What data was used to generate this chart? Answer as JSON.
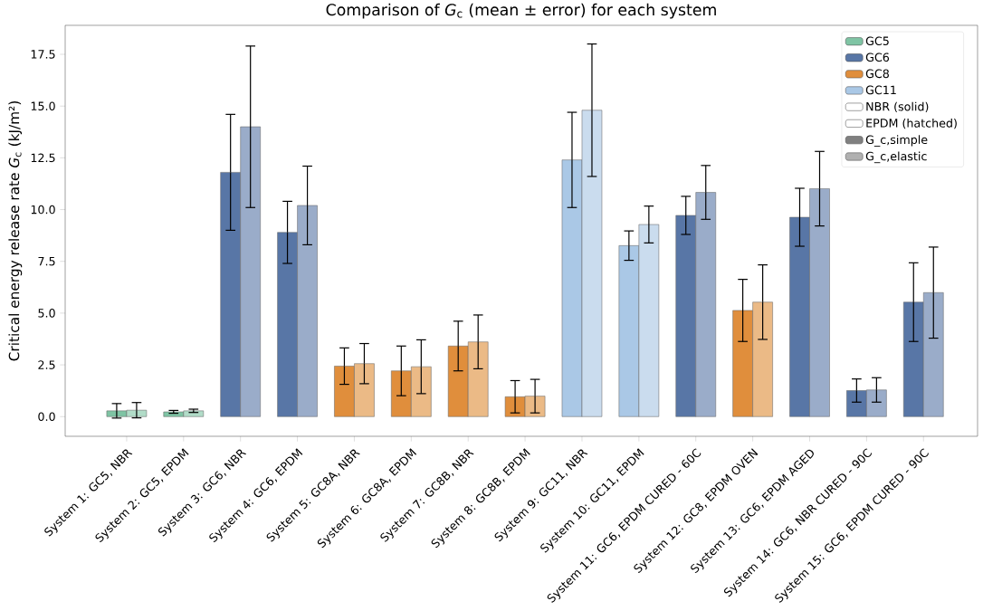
{
  "chart_data": {
    "type": "bar",
    "title": "Comparison of *G*$_{c}$ (mean ± error) for each system",
    "ylabel": "Critical energy release rate *G*$_{c}$ (kJ/m²)",
    "categories": [
      "System 1: GC5, NBR",
      "System 2: GC5, EPDM",
      "System 3: GC6, NBR",
      "System 4: GC6, EPDM",
      "System 5: GC8A, NBR",
      "System 6: GC8A, EPDM",
      "System 7: GC8B, NBR",
      "System 8: GC8B, EPDM",
      "System 9: GC11, NBR",
      "System 10: GC11, EPDM",
      "System 11: GC6, EPDM CURED - 60C",
      "System 12: GC8, EPDM OVEN",
      "System 13: GC6, EPDM AGED",
      "System 14: GC6, NBR CURED - 90C",
      "System 15: GC6, EPDM CURED - 90C"
    ],
    "series": [
      {
        "name": "GC5",
        "color": "#7fc4a4",
        "values": [
          null,
          null,
          null,
          null,
          null,
          null,
          null,
          null,
          null,
          null,
          null,
          null,
          null,
          null,
          null
        ]
      },
      {
        "name": "GC6",
        "color": "#5876a6",
        "values": [
          null,
          null,
          null,
          null,
          null,
          null,
          null,
          null,
          null,
          null,
          null,
          null,
          null,
          null,
          null
        ]
      },
      {
        "name": "GC8",
        "color": "#e08e3c",
        "values": [
          null,
          null,
          null,
          null,
          null,
          null,
          null,
          null,
          null,
          null,
          null,
          null,
          null,
          null,
          null
        ]
      },
      {
        "name": "GC11",
        "color": "#aac8e6",
        "values": [
          null,
          null,
          null,
          null,
          null,
          null,
          null,
          null,
          null,
          null,
          null,
          null,
          null,
          null,
          null
        ]
      },
      {
        "name": "NBR (solid)",
        "color": "#ffffff",
        "values": [
          null,
          null,
          null,
          null,
          null,
          null,
          null,
          null,
          null,
          null,
          null,
          null,
          null,
          null,
          null
        ]
      },
      {
        "name": "EPDM (hatched)",
        "color": "#ffffff",
        "values": [
          null,
          null,
          null,
          null,
          null,
          null,
          null,
          null,
          null,
          null,
          null,
          null,
          null,
          null,
          null
        ]
      },
      {
        "name": "G_c,simple",
        "color": "#808080",
        "values": [
          null,
          null,
          null,
          null,
          null,
          null,
          null,
          null,
          null,
          null,
          null,
          null,
          null,
          null,
          null
        ]
      },
      {
        "name": "G_c,elastic",
        "color": "#b0b0b0",
        "values": [
          null,
          null,
          null,
          null,
          null,
          null,
          null,
          null,
          null,
          null,
          null,
          null,
          null,
          null,
          null
        ]
      },
      {
        "colors": [
          "#7fc4a4",
          "#7fc4a4",
          "#5876a6",
          "#5876a6",
          "#e08e3c",
          "#e08e3c",
          "#e08e3c",
          "#e08e3c",
          "#aac8e6",
          "#aac8e6",
          "#5876a6",
          "#e08e3c",
          "#5876a6",
          "#5876a6",
          "#5876a6"
        ],
        "values": [
          0.28,
          0.23,
          11.8,
          8.9,
          2.44,
          2.21,
          3.41,
          0.96,
          12.4,
          8.26,
          9.72,
          5.13,
          9.63,
          1.26,
          5.53
        ],
        "errors": [
          0.35,
          0.07,
          2.8,
          1.5,
          0.88,
          1.2,
          1.2,
          0.78,
          2.3,
          0.71,
          0.92,
          1.5,
          1.4,
          0.56,
          1.9
        ]
      },
      {
        "colors": [
          "#b1dcc8",
          "#b1dcc8",
          "#9aacc9",
          "#9aacc9",
          "#ebba86",
          "#ebba86",
          "#ebba86",
          "#ebba86",
          "#cadcee",
          "#cadcee",
          "#9aacc9",
          "#ebba86",
          "#9aacc9",
          "#9aacc9",
          "#9aacc9"
        ],
        "values": [
          0.31,
          0.28,
          14.0,
          10.2,
          2.56,
          2.41,
          3.61,
          0.99,
          14.8,
          9.28,
          10.83,
          5.53,
          11.01,
          1.29,
          5.99
        ],
        "errors": [
          0.37,
          0.08,
          3.9,
          1.9,
          0.97,
          1.3,
          1.3,
          0.81,
          3.2,
          0.89,
          1.3,
          1.8,
          1.8,
          0.59,
          2.2
        ]
      }
    ],
    "ylim": [
      -0.95,
      18.9
    ],
    "yticks": [
      {
        "value": 0,
        "label": "0.0"
      },
      {
        "value": 2.5,
        "label": "2.5"
      },
      {
        "value": 5,
        "label": "5.0"
      },
      {
        "value": 7.5,
        "label": "7.5"
      },
      {
        "value": 10,
        "label": "10.0"
      },
      {
        "value": 12.5,
        "label": "12.5"
      },
      {
        "value": 15,
        "label": "15.0"
      },
      {
        "value": 17.5,
        "label": "17.5"
      }
    ],
    "legend": "top right"
  }
}
